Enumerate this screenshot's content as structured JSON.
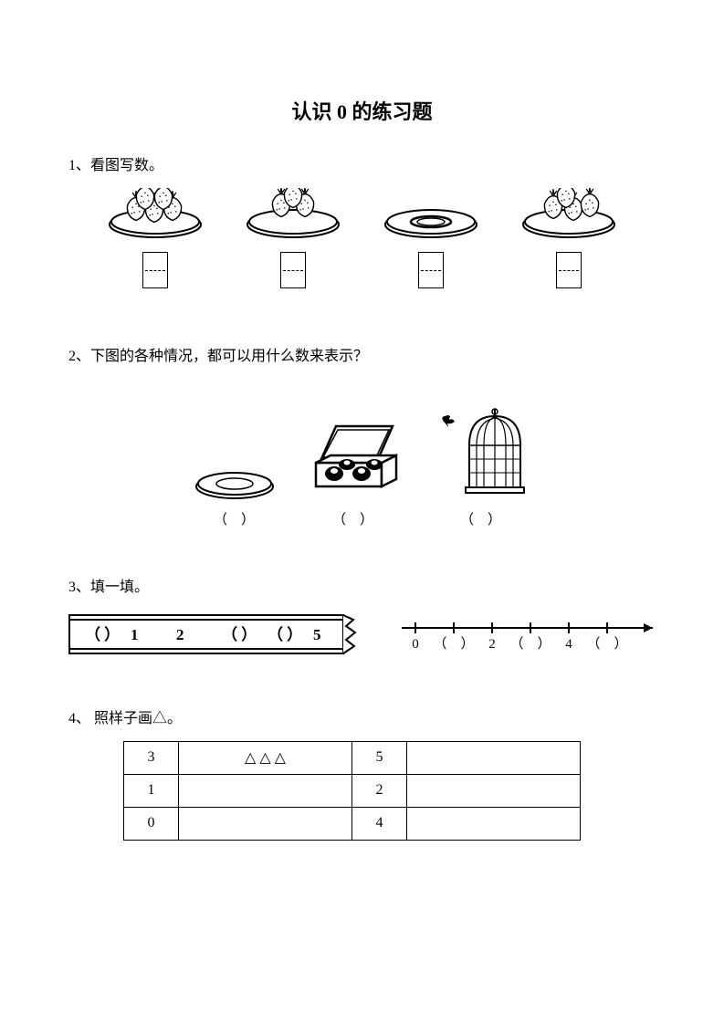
{
  "title": "认识 0 的练习题",
  "q1": {
    "prompt": "1、看图写数。",
    "plates": [
      {
        "strawberries": 5
      },
      {
        "strawberries": 3
      },
      {
        "strawberries": 0
      },
      {
        "strawberries": 4
      }
    ],
    "colors": {
      "stroke": "#000000",
      "fill": "#ffffff"
    }
  },
  "q2": {
    "prompt": "2、下图的各种情况，都可以用什么数来表示？",
    "items": [
      {
        "name": "empty-plate",
        "paren": "（　）"
      },
      {
        "name": "box",
        "paren": "（　）"
      },
      {
        "name": "birdcage",
        "paren": "（　）"
      }
    ]
  },
  "q3": {
    "prompt": "3、填一填。",
    "ruler": {
      "slots": [
        "（ ）",
        "1",
        "2",
        "（ ）",
        "（ ）",
        "5"
      ],
      "bg": "#ffffff",
      "border": "#000000"
    },
    "numberline": {
      "labels": [
        "0",
        "（　）",
        "2",
        "（　）",
        "4",
        "（　）"
      ],
      "stroke": "#000000"
    }
  },
  "q4": {
    "prompt": "4、 照样子画△。",
    "rows": [
      {
        "left_num": "3",
        "left_shapes": "△ △ △",
        "right_num": "5",
        "right_shapes": ""
      },
      {
        "left_num": "1",
        "left_shapes": "",
        "right_num": "2",
        "right_shapes": ""
      },
      {
        "left_num": "0",
        "left_shapes": "",
        "right_num": "4",
        "right_shapes": ""
      }
    ]
  }
}
